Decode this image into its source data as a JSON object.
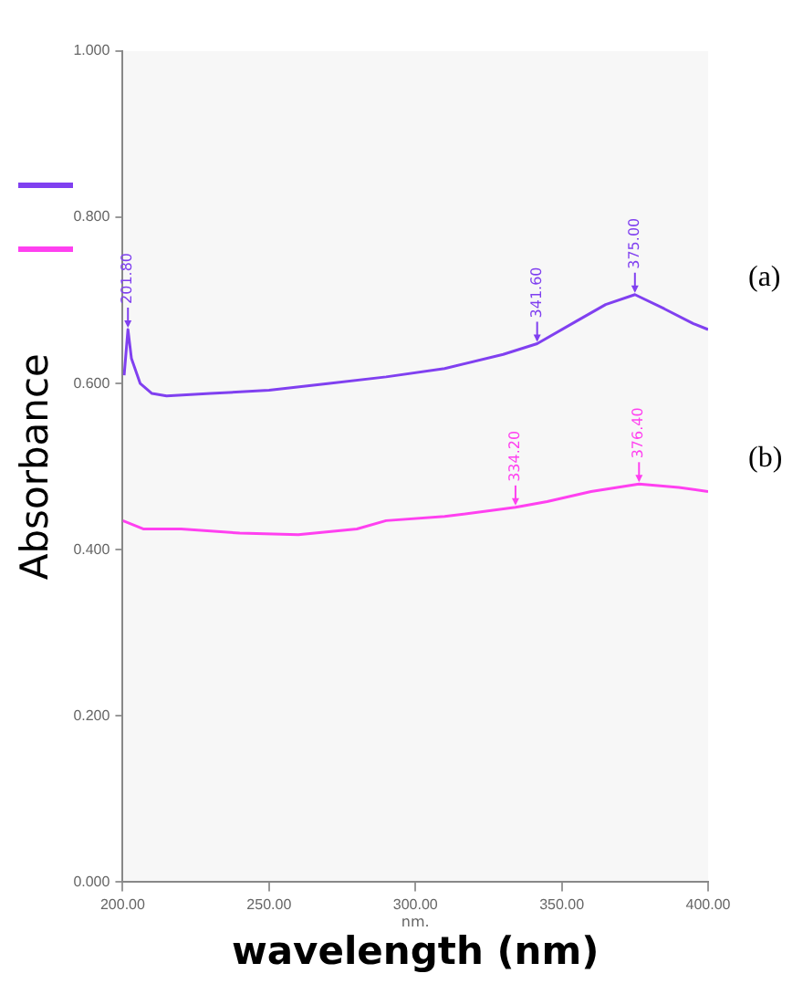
{
  "chart_data": {
    "type": "line",
    "xlabel": "wavelength (nm)",
    "ylabel": "Absorbance",
    "xlim": [
      200,
      400
    ],
    "xticks": [
      {
        "value": 200,
        "label": "200.00"
      },
      {
        "value": 250,
        "label": "250.00"
      },
      {
        "value": 300,
        "label": "300.00"
      },
      {
        "value": 350,
        "label": "350.00"
      },
      {
        "value": 400,
        "label": "400.00"
      }
    ],
    "ylim": [
      0,
      1
    ],
    "yticks": [
      {
        "value": 0,
        "label": "0.000"
      },
      {
        "value": 0.2,
        "label": "0.200"
      },
      {
        "value": 0.4,
        "label": "0.400"
      },
      {
        "value": 0.6,
        "label": "0.600"
      },
      {
        "value": 0.8,
        "label": "0.800"
      },
      {
        "value": 1,
        "label": "1.000"
      }
    ],
    "grid": false,
    "legend": false,
    "marker": "none",
    "line_style": "solid",
    "series": [
      {
        "name": "(a)",
        "color": "#8040f0",
        "x": [
          200.5,
          201.8,
          203,
          206,
          210,
          215,
          230,
          250,
          270,
          290,
          310,
          330,
          341.6,
          355,
          365,
          375,
          385,
          395,
          400
        ],
        "values": [
          0.61,
          0.665,
          0.63,
          0.6,
          0.588,
          0.585,
          0.588,
          0.592,
          0.6,
          0.608,
          0.618,
          0.635,
          0.648,
          0.675,
          0.695,
          0.707,
          0.69,
          0.672,
          0.665
        ]
      },
      {
        "name": "(b)",
        "color": "#ff40f0",
        "x": [
          200,
          207,
          220,
          240,
          260,
          280,
          290,
          310,
          334.2,
          345,
          360,
          376.4,
          390,
          400
        ],
        "values": [
          0.435,
          0.425,
          0.425,
          0.42,
          0.418,
          0.425,
          0.435,
          0.44,
          0.451,
          0.458,
          0.47,
          0.479,
          0.475,
          0.47
        ]
      }
    ],
    "annotations": [
      {
        "text": "201.80",
        "x": 201.8,
        "y": 0.665
      },
      {
        "text": "341.60",
        "x": 341.6,
        "y": 0.648
      },
      {
        "text": "375.00",
        "x": 375,
        "y": 0.707
      },
      {
        "text": "334.20",
        "x": 334.2,
        "y": 0.451
      },
      {
        "text": "376.40",
        "x": 376.4,
        "y": 0.479
      },
      "nm."
    ]
  }
}
